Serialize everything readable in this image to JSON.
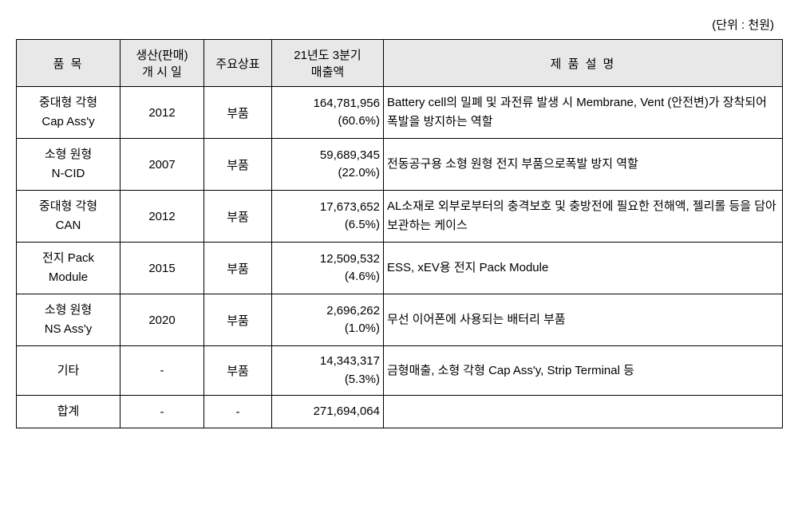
{
  "unit_label": "(단위 : 천원)",
  "table": {
    "columns": {
      "item": "품 목",
      "start_date": "생산(판매)\n개 시 일",
      "brand": "주요상표",
      "revenue": "21년도 3분기\n매출액",
      "description": "제 품 설 명"
    },
    "column_widths": {
      "item": 130,
      "date": 105,
      "brand": 85,
      "revenue": 140,
      "description": 500
    },
    "header_bg": "#e8e8e8",
    "border_color": "#000000",
    "rows": [
      {
        "item_line1": "중대형 각형",
        "item_line2": "Cap Ass'y",
        "date": "2012",
        "brand": "부품",
        "revenue_value": "164,781,956",
        "revenue_pct": "(60.6%)",
        "description": "Battery cell의 밀폐 및 과전류 발생 시 Membrane, Vent (안전변)가 장착되어 폭발을 방지하는 역할"
      },
      {
        "item_line1": "소형 원형",
        "item_line2": "N-CID",
        "date": "2007",
        "brand": "부품",
        "revenue_value": "59,689,345",
        "revenue_pct": "(22.0%)",
        "description": "전동공구용 소형 원형 전지 부품으로폭발 방지 역할"
      },
      {
        "item_line1": "중대형 각형",
        "item_line2": "CAN",
        "date": "2012",
        "brand": "부품",
        "revenue_value": "17,673,652",
        "revenue_pct": "(6.5%)",
        "description": "AL소재로 외부로부터의 충격보호 및 충방전에 필요한 전해액, 젤리롤 등을 담아 보관하는 케이스"
      },
      {
        "item_line1": "전지 Pack",
        "item_line2": "Module",
        "date": "2015",
        "brand": "부품",
        "revenue_value": "12,509,532",
        "revenue_pct": "(4.6%)",
        "description": "ESS, xEV용 전지 Pack Module"
      },
      {
        "item_line1": "소형 원형",
        "item_line2": "NS Ass'y",
        "date": "2020",
        "brand": "부품",
        "revenue_value": "2,696,262",
        "revenue_pct": "(1.0%)",
        "description": "무선 이어폰에 사용되는 배터리 부품"
      },
      {
        "item_line1": "기타",
        "item_line2": "",
        "date": "-",
        "brand": "부품",
        "revenue_value": "14,343,317",
        "revenue_pct": "(5.3%)",
        "description": "금형매출, 소형 각형 Cap Ass'y, Strip Terminal 등"
      },
      {
        "item_line1": "합계",
        "item_line2": "",
        "date": "-",
        "brand": "-",
        "revenue_value": "271,694,064",
        "revenue_pct": "",
        "description": ""
      }
    ]
  }
}
